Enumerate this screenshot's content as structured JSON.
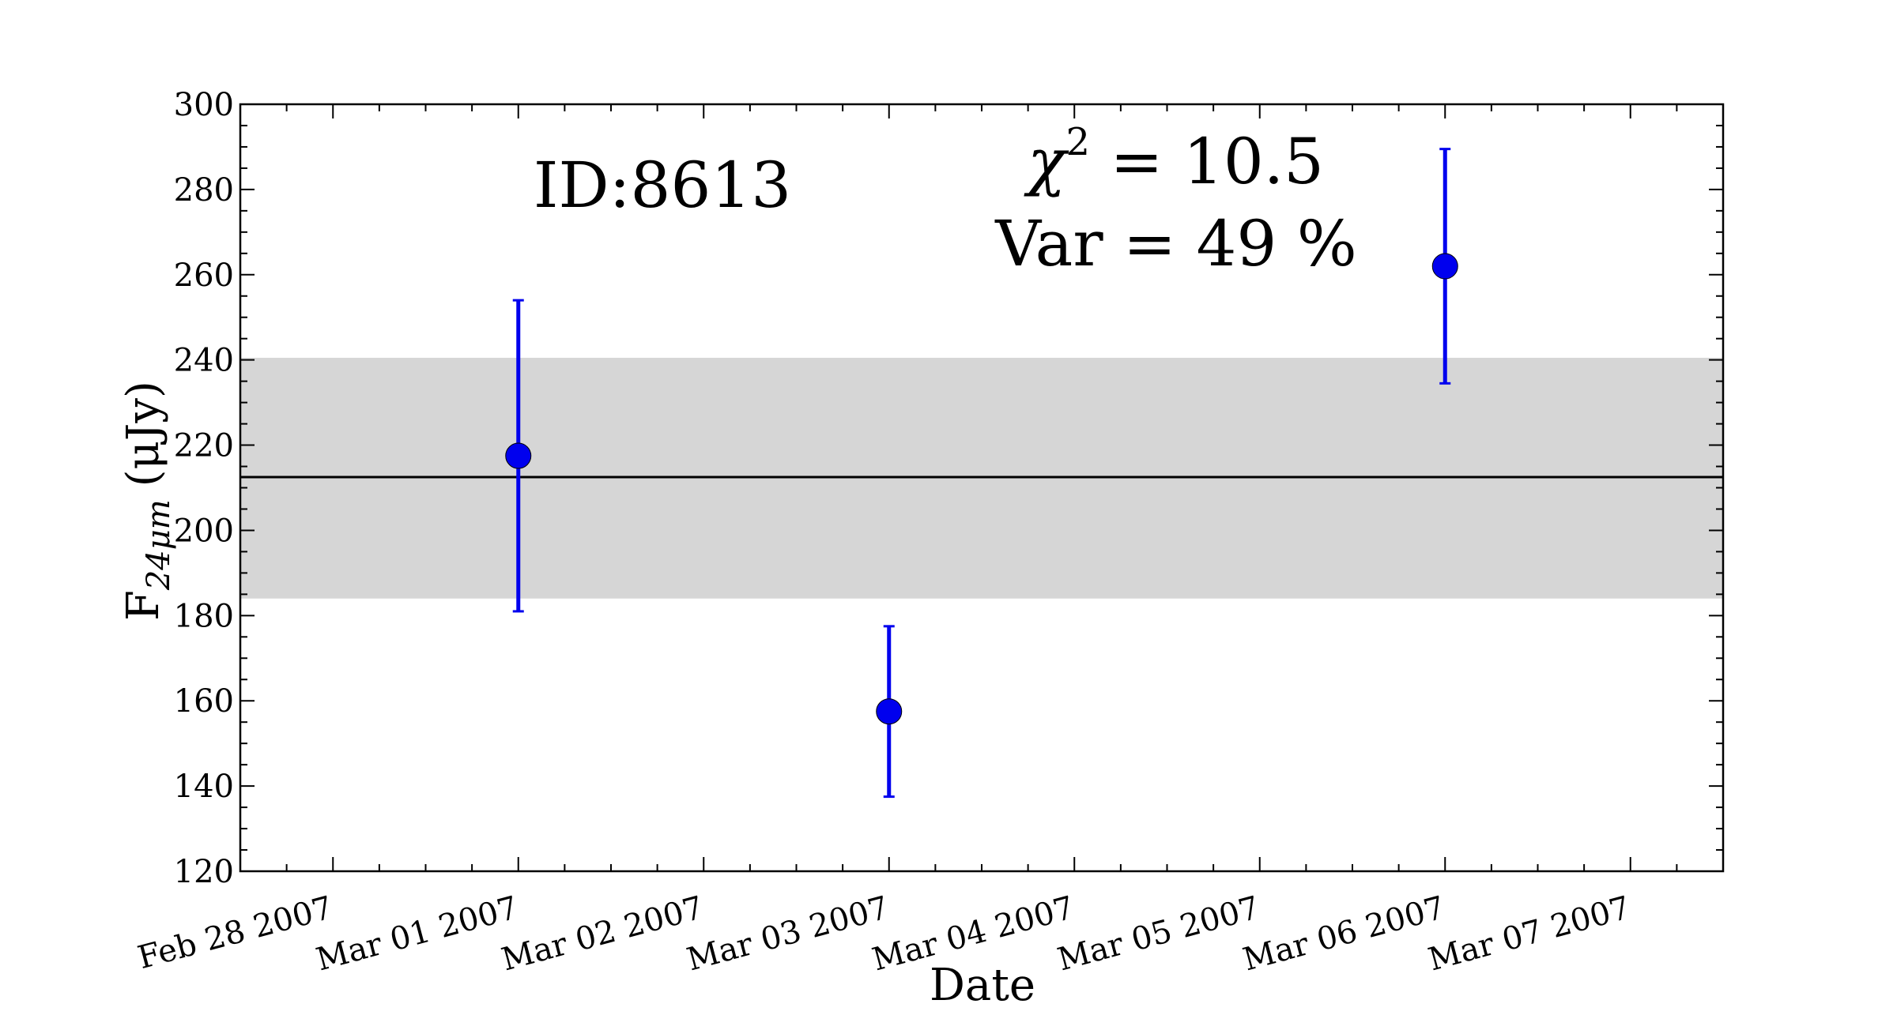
{
  "chart_data": {
    "type": "scatter",
    "title": "",
    "xlabel": "Date",
    "ylabel_main": "F",
    "ylabel_sub": "24μm",
    "ylabel_unit": "(μJy)",
    "xlim": [
      "Feb 27 2007 12:00",
      "Mar 07 2007 12:00"
    ],
    "ylim": [
      120,
      300
    ],
    "x_ticks": [
      "Feb 28 2007",
      "Mar 01 2007",
      "Mar 02 2007",
      "Mar 03 2007",
      "Mar 04 2007",
      "Mar 05 2007",
      "Mar 06 2007",
      "Mar 07 2007"
    ],
    "y_ticks": [
      120,
      140,
      160,
      180,
      200,
      220,
      240,
      260,
      280,
      300
    ],
    "grid": false,
    "series": [
      {
        "color": "#0000ee",
        "points": [
          {
            "x": "Mar 01 2007",
            "y": 217.5,
            "y_low": 181,
            "y_high": 254
          },
          {
            "x": "Mar 03 2007",
            "y": 157.5,
            "y_low": 137.5,
            "y_high": 177.5
          },
          {
            "x": "Mar 06 2007",
            "y": 262,
            "y_low": 234.5,
            "y_high": 289.5
          }
        ]
      }
    ],
    "mean_line": {
      "y": 212.5,
      "color": "#000000"
    },
    "band": {
      "y_low": 184,
      "y_high": 240.5,
      "color": "#d6d6d6"
    },
    "annotations": {
      "id_label": "ID:8613",
      "chi_symbol": "χ",
      "chi_exponent": "2",
      "chi_value": " = 10.5",
      "var_label": "Var = 49 %"
    }
  }
}
